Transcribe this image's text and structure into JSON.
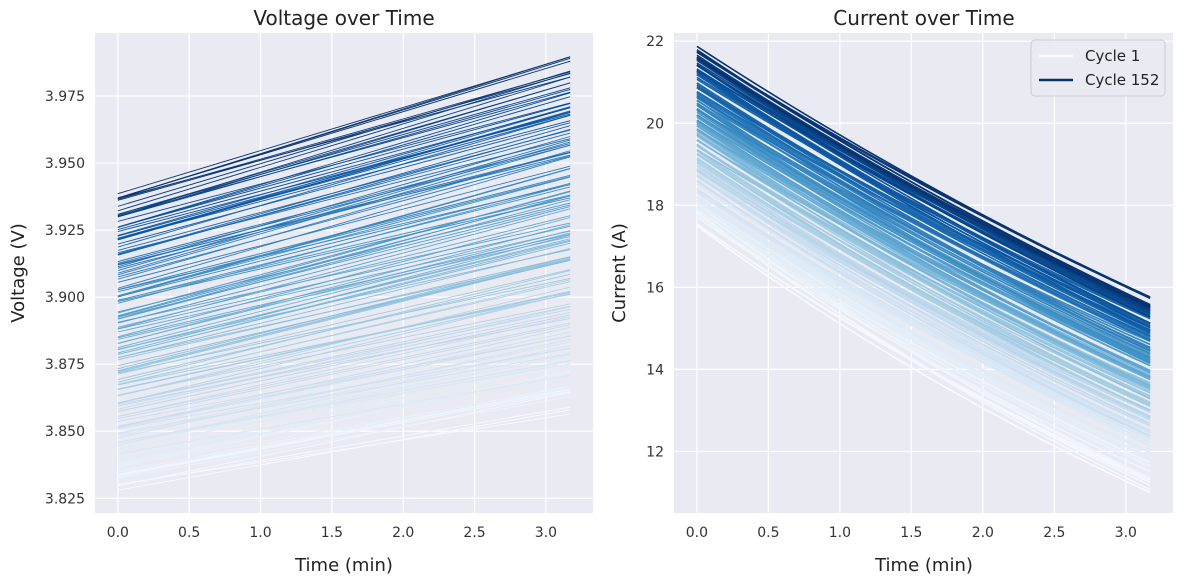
{
  "chart_data": [
    {
      "type": "line",
      "title": "Voltage over Time",
      "xlabel": "Time (min)",
      "ylabel": "Voltage (V)",
      "xlim": [
        -0.16,
        3.33
      ],
      "ylim": [
        3.8195,
        3.9985
      ],
      "xticks": [
        0.0,
        0.5,
        1.0,
        1.5,
        2.0,
        2.5,
        3.0
      ],
      "xtick_labels": [
        "0.0",
        "0.5",
        "1.0",
        "1.5",
        "2.0",
        "2.5",
        "3.0"
      ],
      "yticks": [
        3.825,
        3.85,
        3.875,
        3.9,
        3.925,
        3.95,
        3.975
      ],
      "ytick_labels": [
        "3.825",
        "3.850",
        "3.875",
        "3.900",
        "3.925",
        "3.950",
        "3.975"
      ],
      "grid": true,
      "x_range": [
        0.0,
        3.17
      ],
      "n_cycles": 152,
      "colormap": "Blues",
      "series_summary": {
        "cycle_1": {
          "y_start": 3.828,
          "y_end": 3.858
        },
        "cycle_152": {
          "y_start": 3.937,
          "y_end": 3.988
        },
        "start_range": [
          3.828,
          3.94
        ],
        "end_range": [
          3.858,
          3.991
        ]
      }
    },
    {
      "type": "line",
      "title": "Current over Time",
      "xlabel": "Time (min)",
      "ylabel": "Current (A)",
      "xlim": [
        -0.16,
        3.33
      ],
      "ylim": [
        10.5,
        22.2
      ],
      "xticks": [
        0.0,
        0.5,
        1.0,
        1.5,
        2.0,
        2.5,
        3.0
      ],
      "xtick_labels": [
        "0.0",
        "0.5",
        "1.0",
        "1.5",
        "2.0",
        "2.5",
        "3.0"
      ],
      "yticks": [
        12,
        14,
        16,
        18,
        20,
        22
      ],
      "ytick_labels": [
        "12",
        "14",
        "16",
        "18",
        "20",
        "22"
      ],
      "grid": true,
      "x_range": [
        0.0,
        3.17
      ],
      "n_cycles": 152,
      "colormap": "Blues",
      "legend": {
        "placement": "top-right",
        "entries": [
          "Cycle 1",
          "Cycle 152"
        ]
      },
      "series_summary": {
        "cycle_1": {
          "y_start": 17.5,
          "y_end": 11.0
        },
        "cycle_152": {
          "y_start": 21.6,
          "y_end": 15.5
        },
        "start_range": [
          17.5,
          21.7
        ],
        "end_range": [
          11.0,
          15.7
        ]
      }
    }
  ],
  "colors": {
    "axes_background": "#eaeaf2",
    "grid": "#ffffff",
    "cmap_light": "#f7fbff",
    "cmap_dark": "#08306b"
  }
}
